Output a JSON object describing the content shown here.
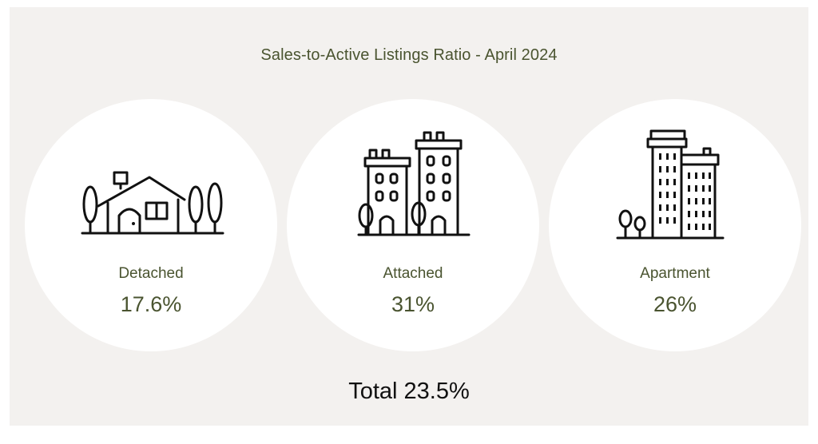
{
  "title": "Sales-to-Active Listings Ratio - April 2024",
  "categories": [
    {
      "label": "Detached",
      "value": "17.6%",
      "icon": "house-icon"
    },
    {
      "label": "Attached",
      "value": "31%",
      "icon": "townhouse-icon"
    },
    {
      "label": "Apartment",
      "value": "26%",
      "icon": "apartment-icon"
    }
  ],
  "total": "Total 23.5%",
  "colors": {
    "panel": "#f3f1ef",
    "accent": "#4a5430",
    "text": "#111111",
    "circle": "#ffffff"
  }
}
